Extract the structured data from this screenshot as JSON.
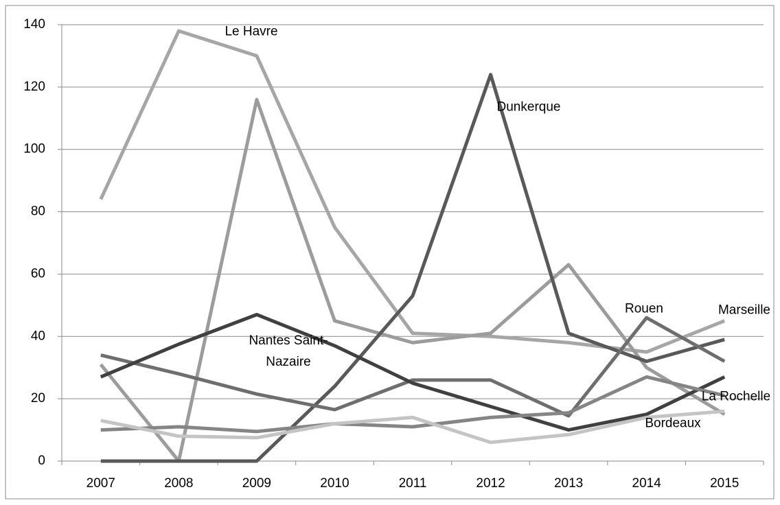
{
  "chart_data": {
    "type": "line",
    "categories": [
      "2007",
      "2008",
      "2009",
      "2010",
      "2011",
      "2012",
      "2013",
      "2014",
      "2015"
    ],
    "ylim": [
      0,
      140
    ],
    "yticks": [
      0,
      20,
      40,
      60,
      80,
      100,
      120,
      140
    ],
    "grid": true,
    "series": [
      {
        "name": "Le Havre",
        "color": "#a6a6a6",
        "values": [
          84,
          138,
          130,
          75,
          41,
          40,
          38,
          35,
          45
        ]
      },
      {
        "name": "Marseille",
        "color": "#9c9c9c",
        "values": [
          31,
          0,
          116,
          45,
          38,
          41,
          63,
          30,
          15
        ]
      },
      {
        "name": "Dunkerque",
        "color": "#595959",
        "values": [
          0,
          0,
          0,
          24,
          53,
          124,
          41,
          32,
          39
        ]
      },
      {
        "name": "Rouen",
        "color": "#6e6e6e",
        "values": [
          34,
          28,
          21.5,
          16.5,
          26,
          26,
          14.5,
          46,
          32
        ]
      },
      {
        "name": "Nantes Saint-Nazaire",
        "color": "#404040",
        "values": [
          27,
          37.5,
          47,
          37,
          25,
          17.5,
          10,
          15,
          27
        ]
      },
      {
        "name": "La Rochelle",
        "color": "#858585",
        "values": [
          10,
          11,
          9.5,
          12,
          11,
          14,
          15.5,
          27,
          21
        ]
      },
      {
        "name": "Bordeaux",
        "color": "#c4c4c4",
        "values": [
          13,
          8,
          7.5,
          12,
          14,
          6,
          8.5,
          14,
          16
        ]
      }
    ]
  }
}
